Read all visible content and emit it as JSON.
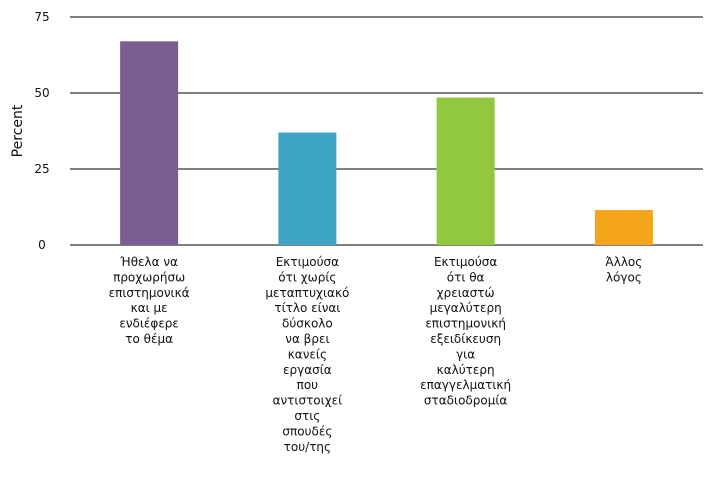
{
  "chart_data": {
    "type": "bar",
    "title": "",
    "xlabel": "",
    "ylabel": "Percent",
    "ylim": [
      0,
      75
    ],
    "yticks": [
      0,
      25,
      50,
      75
    ],
    "grid": true,
    "categories": [
      "Ήθελα να προχωρήσω επιστημονικά και με ενδιέφερε το θέμα",
      "Εκτιμούσα ότι χωρίς μεταπτυχιακό τίτλο είναι δύσκολο να βρει κανείς εργασία που αντιστοιχεί στις σπουδές του/της",
      "Εκτιμούσα ότι θα χρειαστώ μεγαλύτερη επιστημονική εξειδίκευση για καλύτερη επαγγελματική σταδιοδρομία",
      "Άλλος λόγος"
    ],
    "category_lines": [
      [
        "Ήθελα να",
        "προχωρήσω",
        "επιστημονικά",
        "και με",
        "ενδιέφερε",
        "το θέμα"
      ],
      [
        "Εκτιμούσα",
        "ότι χωρίς",
        "μεταπτυχιακό",
        "τίτλο είναι",
        "δύσκολο",
        "να βρει",
        "κανείς",
        "εργασία",
        "που",
        "αντιστοιχεί",
        "στις",
        "σπουδές",
        "του/της"
      ],
      [
        "Εκτιμούσα",
        "ότι θα",
        "χρειαστώ",
        "μεγαλύτερη",
        "επιστημονική",
        "εξειδίκευση",
        "για",
        "καλύτερη",
        "επαγγελματική",
        "σταδιοδρομία"
      ],
      [
        "Άλλος",
        "λόγος"
      ]
    ],
    "values": [
      67,
      37,
      48.5,
      11.5
    ],
    "colors": [
      "#7b5e91",
      "#3ea5c7",
      "#92c83e",
      "#f4a51c"
    ]
  }
}
